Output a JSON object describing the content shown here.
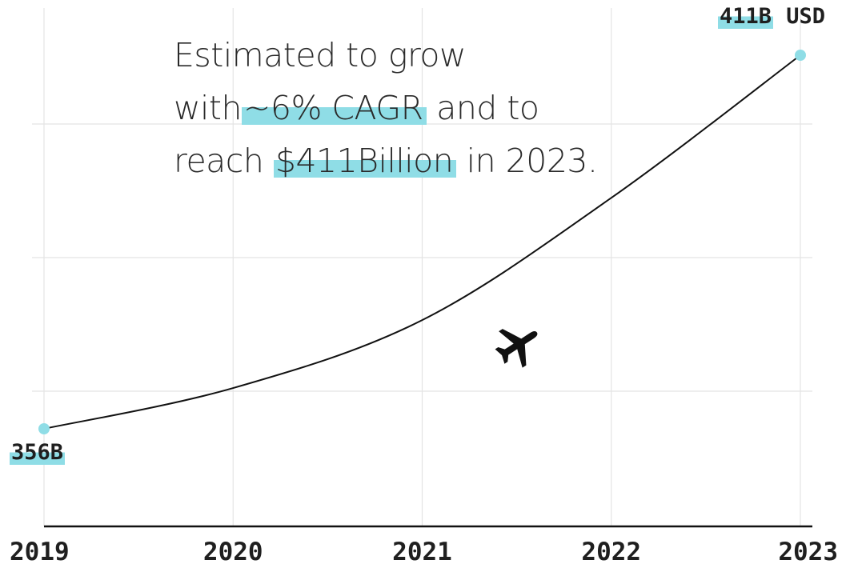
{
  "headline": {
    "part1": "Estimated to grow",
    "part2a": "with",
    "part2_highlight": "~6% CAGR",
    "part2b": " and to",
    "part3a": "reach ",
    "part3_highlight": "$411Billion",
    "part3b": " in 2023."
  },
  "colors": {
    "accent": "#8fdde6",
    "line": "#111111",
    "grid": "#e4e4e4",
    "text": "#1f1f1f"
  },
  "icons": {
    "plane": "airplane-icon"
  },
  "chart_data": {
    "type": "line",
    "x": [
      "2019",
      "2020",
      "2021",
      "2022",
      "2023"
    ],
    "series": [
      {
        "values": [
          356,
          362,
          372,
          390,
          411
        ]
      }
    ],
    "labels": {
      "start": "356B",
      "end_value": "411B",
      "end_unit": " USD"
    },
    "grid": true
  }
}
